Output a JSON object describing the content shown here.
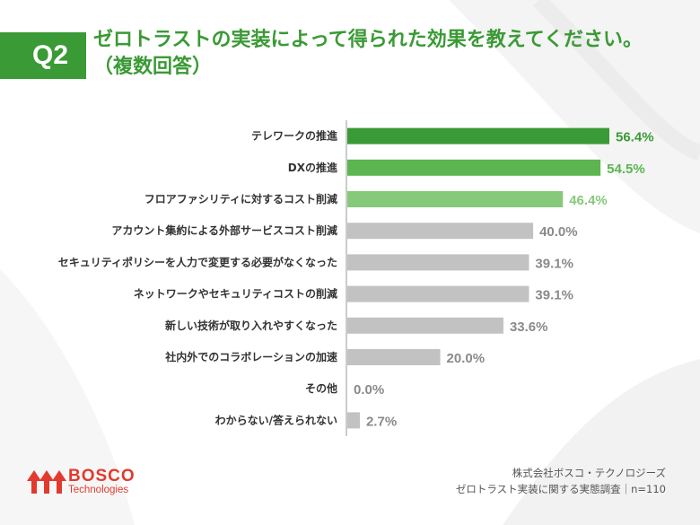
{
  "header": {
    "badge": "Q2",
    "title_line1": "ゼロトラストの実装によって得られた効果を教えてください。",
    "title_line2": "（複数回答）"
  },
  "colors": {
    "brand_green": "#3a9a35",
    "bar_dark_green": "#3a9a35",
    "bar_mid_green": "#5cb550",
    "bar_light_green": "#86c97a",
    "bar_gray": "#c2c2c2",
    "value_gray": "#8a8a8a",
    "logo_red": "#e23a2e"
  },
  "chart_data": {
    "type": "bar",
    "orientation": "horizontal",
    "unit": "%",
    "xlim": [
      0,
      60
    ],
    "categories": [
      "テレワークの推進",
      "DXの推進",
      "フロアファシリティに対するコスト削減",
      "アカウント集約による外部サービスコスト削減",
      "セキュリティポリシーを人力で変更する必要がなくなった",
      "ネットワークやセキュリティコストの削減",
      "新しい技術が取り入れやすくなった",
      "社内外でのコラボレーションの加速",
      "その他",
      "わからない/答えられない"
    ],
    "values": [
      56.4,
      54.5,
      46.4,
      40.0,
      39.1,
      39.1,
      33.6,
      20.0,
      0.0,
      2.7
    ],
    "value_labels": [
      "56.4%",
      "54.5%",
      "46.4%",
      "40.0%",
      "39.1%",
      "39.1%",
      "33.6%",
      "20.0%",
      "0.0%",
      "2.7%"
    ],
    "bar_colors": [
      "#3a9a35",
      "#5cb550",
      "#86c97a",
      "#c2c2c2",
      "#c2c2c2",
      "#c2c2c2",
      "#c2c2c2",
      "#c2c2c2",
      "#c2c2c2",
      "#c2c2c2"
    ],
    "value_label_colors": [
      "#3a9a35",
      "#5cb550",
      "#86c97a",
      "#8a8a8a",
      "#8a8a8a",
      "#8a8a8a",
      "#8a8a8a",
      "#8a8a8a",
      "#8a8a8a",
      "#8a8a8a"
    ]
  },
  "logo": {
    "name": "BOSCO",
    "sub": "Technologies"
  },
  "source": {
    "line1": "株式会社ボスコ・テクノロジーズ",
    "line2": "ゼロトラスト実装に関する実態調査｜n=110"
  }
}
